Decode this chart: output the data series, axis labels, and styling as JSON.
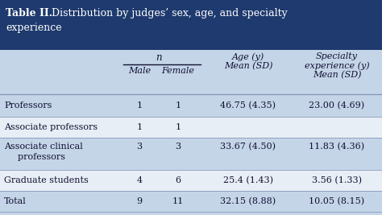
{
  "title_bold": "Table II.",
  "title_rest": "  Distribution by judges’ sex, age, and specialty",
  "title_rest2": "experience",
  "header_bg": "#1e3a6e",
  "header_text_color": "#ffffff",
  "col_header_n": "n",
  "col_header_male": "Male",
  "col_header_female": "Female",
  "col_header_age": "Age (y)\nMean (SD)",
  "col_header_specialty": "Specialty\nexperience (y)\nMean (SD)",
  "rows": [
    {
      "label": "Professors",
      "label2": null,
      "male": "1",
      "female": "1",
      "age": "46.75 (4.35)",
      "specialty": "23.00 (4.69)",
      "shaded": true
    },
    {
      "label": "Associate professors",
      "label2": null,
      "male": "1",
      "female": "1",
      "age": "",
      "specialty": "",
      "shaded": false
    },
    {
      "label": "Associate clinical",
      "label2": "  professors",
      "male": "3",
      "female": "3",
      "age": "33.67 (4.50)",
      "specialty": "11.83 (4.36)",
      "shaded": true
    },
    {
      "label": "Graduate students",
      "label2": null,
      "male": "4",
      "female": "6",
      "age": "25.4 (1.43)",
      "specialty": "3.56 (1.33)",
      "shaded": false
    },
    {
      "label": "Total",
      "label2": null,
      "male": "9",
      "female": "11",
      "age": "32.15 (8.88)",
      "specialty": "10.05 (8.15)",
      "shaded": true
    }
  ],
  "shaded_color": "#c5d5e8",
  "white_color": "#e8eef5",
  "sep_line_color": "#8899bb",
  "text_color": "#111133",
  "font_size_title": 9.0,
  "font_size_header": 8.0,
  "font_size_body": 8.0
}
